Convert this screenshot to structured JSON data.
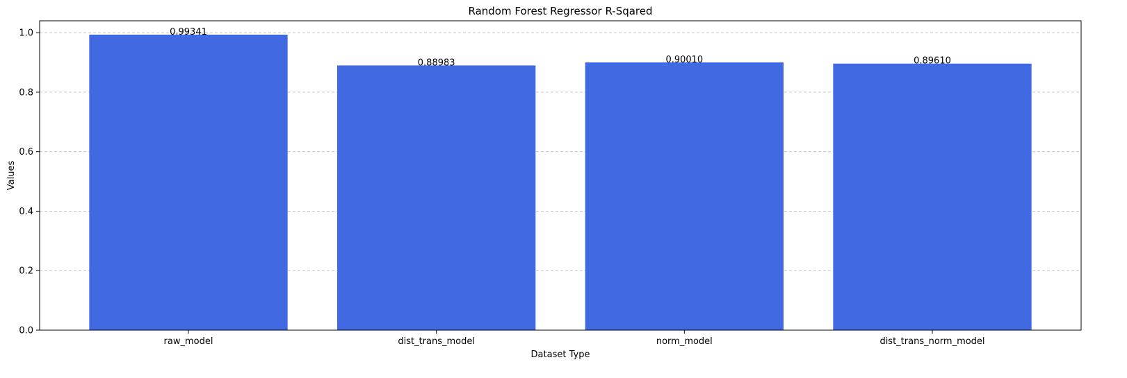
{
  "chart_data": {
    "type": "bar",
    "title": "Random Forest Regressor R-Sqared",
    "xlabel": "Dataset Type",
    "ylabel": "Values",
    "categories": [
      "raw_model",
      "dist_trans_model",
      "norm_model",
      "dist_trans_norm_model"
    ],
    "values": [
      0.99341,
      0.88983,
      0.9001,
      0.8961
    ],
    "value_labels": [
      "0.99341",
      "0.88983",
      "0.90010",
      "0.89610"
    ],
    "ylim": [
      0,
      1.04
    ],
    "yticks": [
      0.0,
      0.2,
      0.4,
      0.6,
      0.8,
      1.0
    ],
    "ytick_labels": [
      "0.0",
      "0.2",
      "0.4",
      "0.6",
      "0.8",
      "1.0"
    ],
    "grid": "y-dashed",
    "bar_color": "#4169e1",
    "grid_color": "#c0c0c0"
  }
}
